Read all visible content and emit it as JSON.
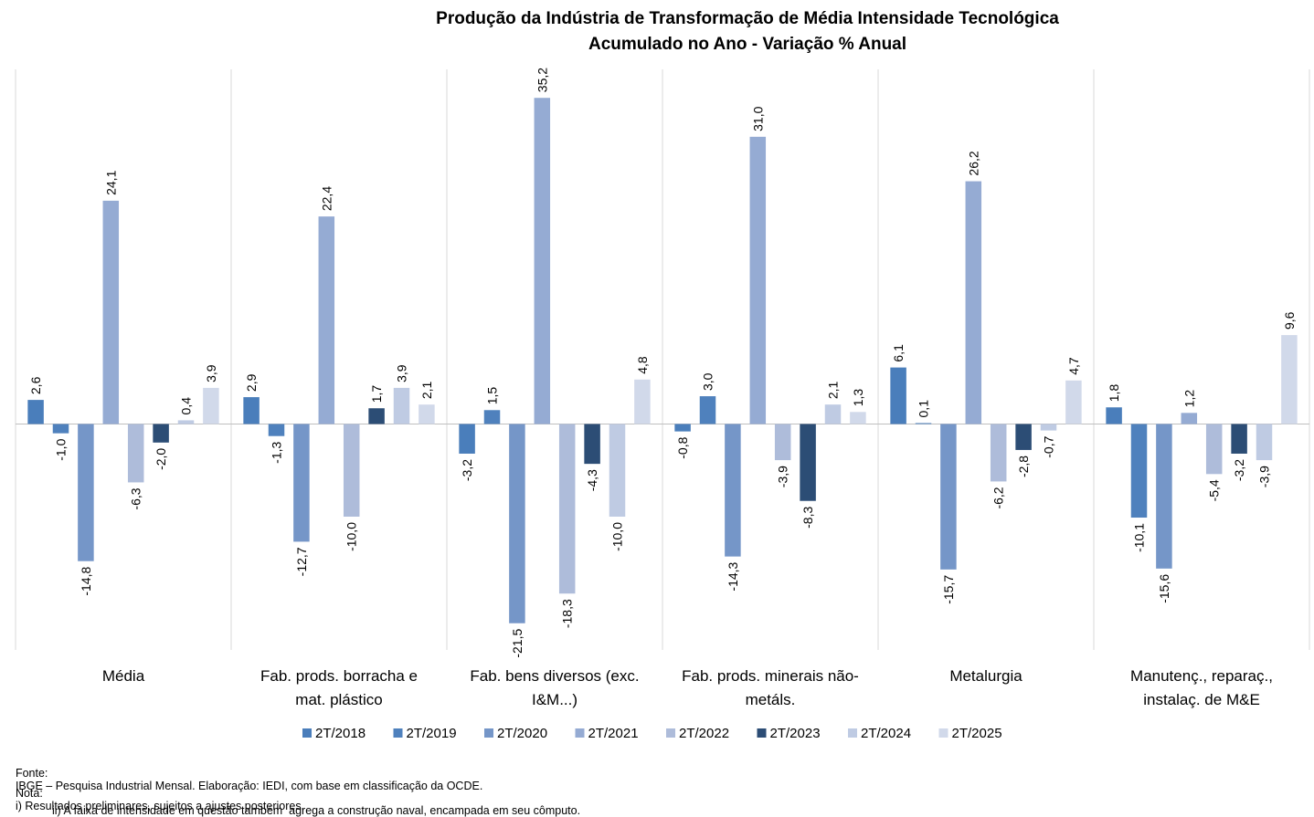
{
  "chart_data": {
    "type": "bar",
    "title": "Produção da Indústria de Transformação de Média Intensidade Tecnológica",
    "subtitle": "Acumulado no Ano - Variação % Anual",
    "categories": [
      [
        "Média"
      ],
      [
        "Fab. prods. borracha e",
        "mat. plástico"
      ],
      [
        "Fab. bens diversos (exc.",
        "I&M...)"
      ],
      [
        "Fab. prods. minerais não-",
        "metáls."
      ],
      [
        "Metalurgia"
      ],
      [
        "Manutenç., reparaç.,",
        "instalaç. de M&E"
      ]
    ],
    "series": [
      {
        "name": "2T/2018",
        "color": "#4a7ebb",
        "values": [
          2.6,
          2.9,
          -3.2,
          -0.8,
          6.1,
          1.8
        ]
      },
      {
        "name": "2T/2019",
        "color": "#4f81bd",
        "values": [
          -1.0,
          -1.3,
          1.5,
          3.0,
          0.1,
          -10.1
        ]
      },
      {
        "name": "2T/2020",
        "color": "#7596c8",
        "values": [
          -14.8,
          -12.7,
          -21.5,
          -14.3,
          -15.7,
          -15.6
        ]
      },
      {
        "name": "2T/2021",
        "color": "#95abd3",
        "values": [
          24.1,
          22.4,
          35.2,
          31.0,
          26.2,
          1.2
        ]
      },
      {
        "name": "2T/2022",
        "color": "#aebcda",
        "values": [
          -6.3,
          -10.0,
          -18.3,
          -3.9,
          -6.2,
          -5.4
        ]
      },
      {
        "name": "2T/2023",
        "color": "#2c4d75",
        "values": [
          -2.0,
          1.7,
          -4.3,
          -8.3,
          -2.8,
          -3.2
        ]
      },
      {
        "name": "2T/2024",
        "color": "#bfcbe3",
        "values": [
          0.4,
          3.9,
          -10.0,
          2.1,
          -0.7,
          -3.9
        ]
      },
      {
        "name": "2T/2025",
        "color": "#d1d9ea",
        "values": [
          3.9,
          2.1,
          4.8,
          1.3,
          4.7,
          9.6
        ]
      }
    ],
    "ylim": [
      -25,
      40
    ],
    "grid": false,
    "legend_position": "bottom",
    "decimal_separator": ","
  },
  "footnotes": {
    "source_label": "Fonte:",
    "source_text": "IBGE – Pesquisa Industrial Mensal. Elaboração: IEDI, com base em classificação da OCDE.",
    "note_label": "Nota:",
    "note_1": "i) Resultados preliminares, sujeitos a ajustes posteriores.",
    "note_2": "ii) A faixa de intensidade em questão também  agrega a construção naval, encampada em seu cômputo."
  }
}
